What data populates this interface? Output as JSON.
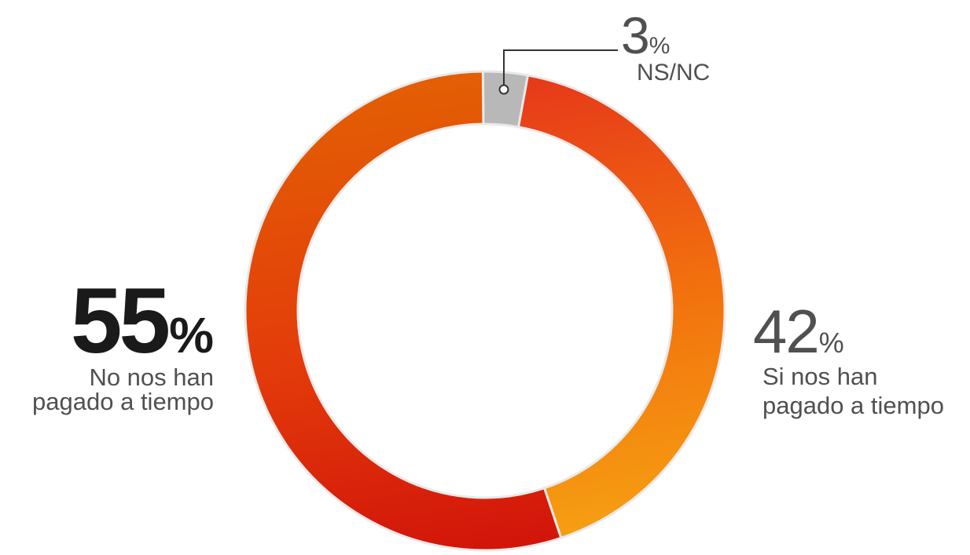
{
  "chart_data": {
    "type": "pie",
    "variant": "donut",
    "title": "",
    "slices": [
      {
        "label": "NS/NC",
        "value": 3,
        "color": "#b4b4b4"
      },
      {
        "label": "Si nos han pagado a tiempo",
        "value": 42,
        "color": "#f07a10"
      },
      {
        "label": "No nos han pagado a tiempo",
        "value": 55,
        "color": "#e04a0c"
      }
    ]
  },
  "labels": {
    "nsnc": {
      "value": "3",
      "unit": "%",
      "text": "NS/NC"
    },
    "si": {
      "value": "42",
      "unit": "%",
      "line1": "Si nos han",
      "line2": "pagado a tiempo"
    },
    "no": {
      "value": "55",
      "unit": "%",
      "line1": "No nos han",
      "line2": "pagado a tiempo"
    }
  }
}
